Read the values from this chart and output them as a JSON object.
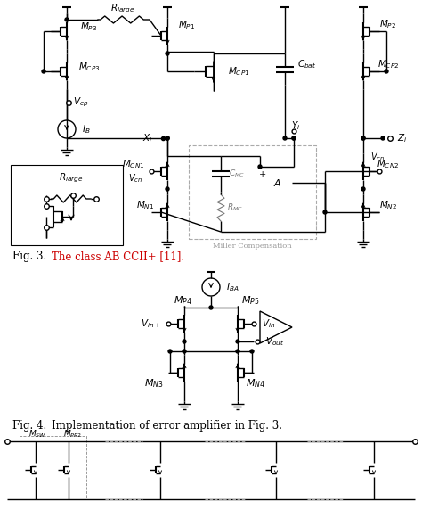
{
  "fig_width": 4.74,
  "fig_height": 5.72,
  "dpi": 100,
  "bg_color": "#ffffff",
  "fig3_caption": "Fig. 3.",
  "fig3_caption_color": "#000000",
  "fig3_title": "The class AB CCII+ [11].",
  "fig3_title_color": "#cc0000",
  "fig4_caption": "Fig. 4.",
  "fig4_caption_color": "#000000",
  "fig4_title": "Implementation of error amplifier in Fig. 3.",
  "fig4_title_color": "#000000",
  "miller_label": "Miller Compensation",
  "miller_label_color": "#999999"
}
